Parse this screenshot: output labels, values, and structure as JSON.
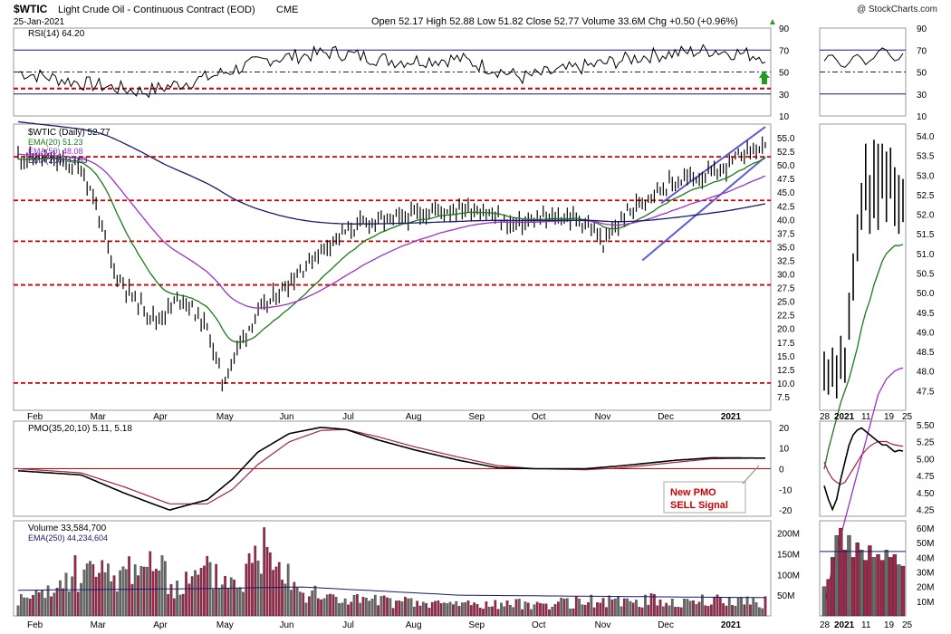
{
  "header": {
    "symbol": "$WTIC",
    "name": "Light Crude Oil - Continuous Contract (EOD)",
    "exchange": "CME",
    "date": "25-Jan-2021",
    "copyright": "@ StockCharts.com",
    "quote": "Open 52.17  High 52.88  Low 51.82  Close 52.77  Volume 33.6M  Chg +0.50 (+0.96%)"
  },
  "annotation": {
    "line1": "New PMO",
    "line2": "SELL Signal",
    "color": "#cc0000"
  },
  "colors": {
    "price": "#000000",
    "ema20": "#1a7a1a",
    "ema50": "#9932cc",
    "ema200": "#191970",
    "support_lines": "#cc0000",
    "channel": "#5b5bd6",
    "volume_up": "#6a6a6a",
    "volume_down": "#a0254a",
    "signal_arrow": "#1f9d1f"
  },
  "chart_data": [
    {
      "id": "rsi",
      "type": "line",
      "label": "RSI(14) 64.20",
      "series": [
        {
          "name": "RSI(14)",
          "last": 64.2
        }
      ],
      "y_ticks": [
        "90",
        "70",
        "50",
        "30",
        "10"
      ],
      "ylim": [
        10,
        90
      ],
      "reference_lines": [
        70,
        50,
        35,
        30
      ]
    },
    {
      "id": "price",
      "type": "line",
      "label": "$WTIC (Daily) 52.77",
      "legend": [
        "EMA(20) 51.23",
        "EMA(50) 48.08",
        "EMA(200) 43.53"
      ],
      "x_labels": [
        "Feb",
        "Mar",
        "Apr",
        "May",
        "Jun",
        "Jul",
        "Aug",
        "Sep",
        "Oct",
        "Nov",
        "Dec",
        "2021"
      ],
      "y_ticks": [
        "55.0",
        "52.5",
        "50.0",
        "47.5",
        "45.0",
        "42.5",
        "40.0",
        "37.5",
        "35.0",
        "32.5",
        "30.0",
        "27.5",
        "25.0",
        "22.5",
        "20.0",
        "17.5",
        "15.0",
        "12.5",
        "10.0",
        "7.5"
      ],
      "ylim": [
        5,
        57.5
      ],
      "support_levels": [
        51.5,
        43.5,
        36.0,
        28.0,
        10.0
      ],
      "months": [
        0,
        1,
        2,
        3,
        4,
        5,
        6,
        7,
        8,
        9,
        10,
        11,
        11.85
      ],
      "close": [
        51.5,
        49.8,
        45.0,
        30.5,
        23.5,
        20.0,
        19.0,
        16.0,
        25.0,
        31.0,
        36.5,
        40.0,
        40.5,
        41.5,
        42.0,
        42.5,
        40.5,
        39.5,
        40.5,
        39.0,
        35.5,
        40.5,
        45.5,
        47.5,
        48.5,
        50.5,
        52.77
      ],
      "ema20_last": 51.23,
      "ema50_last": 48.08,
      "ema200_last": 43.53,
      "series": [
        {
          "name": "$WTIC",
          "points_month": [
            0,
            0.5,
            1,
            1.4,
            1.8,
            2.2,
            2.6,
            3.0,
            3.35,
            3.7,
            4.1,
            4.5,
            5.0,
            5.5,
            6.0,
            6.5,
            7.0,
            7.3,
            7.8,
            8.3,
            8.7,
            9.1,
            9.6,
            10.1,
            10.6,
            11.1,
            11.85
          ]
        },
        {
          "name": "EMA(20)",
          "last": 51.23
        },
        {
          "name": "EMA(50)",
          "last": 48.08
        },
        {
          "name": "EMA(200)",
          "last": 43.53
        }
      ]
    },
    {
      "id": "pmo",
      "type": "line",
      "label": "PMO(35,20,10) 5.11, 5.18",
      "y_ticks": [
        "20",
        "10",
        "0",
        "-10",
        "-20"
      ],
      "ylim": [
        -23,
        23
      ],
      "months": [
        0,
        1,
        1.7,
        2.4,
        3.0,
        3.4,
        3.8,
        4.3,
        4.8,
        5.2,
        5.7,
        6.3,
        7.0,
        7.6,
        8.2,
        9.0,
        9.6,
        10.4,
        11.0,
        11.85
      ],
      "pmo": [
        -1,
        -3,
        -12,
        -20,
        -15,
        -5,
        8,
        17,
        20,
        19,
        14,
        9,
        4,
        0.5,
        0,
        0,
        1.5,
        4,
        5.3,
        5.11
      ],
      "signal": [
        0,
        -2,
        -9,
        -17,
        -17,
        -10,
        2,
        13,
        18.5,
        19,
        15.5,
        10.5,
        5.5,
        1.5,
        0,
        -0.5,
        0.5,
        3,
        4.8,
        5.18
      ]
    },
    {
      "id": "volume",
      "type": "bar",
      "label": "Volume 33,584,700",
      "legend": "EMA(250) 44,234,604",
      "y_ticks": [
        "200M",
        "150M",
        "100M",
        "50M"
      ],
      "ylim": [
        0,
        230
      ],
      "months": [
        0,
        0.5,
        1,
        1.5,
        2,
        2.5,
        3,
        3.5,
        4,
        4.5,
        5,
        5.5,
        6,
        6.5,
        7,
        7.5,
        8,
        8.5,
        9,
        9.5,
        10,
        10.5,
        11,
        11.5,
        11.85
      ],
      "values": [
        40,
        55,
        120,
        95,
        150,
        70,
        110,
        85,
        210,
        60,
        45,
        40,
        35,
        30,
        32,
        28,
        30,
        30,
        38,
        35,
        40,
        35,
        38,
        40,
        34
      ]
    }
  ],
  "zoom": {
    "x_labels": [
      "28",
      "2021",
      "11",
      "19",
      "25"
    ],
    "price_ticks": [
      "54.0",
      "53.5",
      "53.0",
      "52.5",
      "52.0",
      "51.5",
      "51.0",
      "50.5",
      "50.0",
      "49.5",
      "49.0",
      "48.5",
      "48.0",
      "47.5"
    ],
    "price_ylim": [
      47.0,
      54.3
    ],
    "rsi_ticks": [
      "90",
      "70",
      "50",
      "30",
      "10"
    ],
    "pmo_ticks": [
      "5.50",
      "5.25",
      "5.00",
      "4.75",
      "4.50",
      "4.25"
    ],
    "pmo_ylim": [
      4.15,
      5.55
    ],
    "volume_ticks": [
      "60M",
      "50M",
      "40M",
      "30M",
      "20M",
      "10M"
    ],
    "volume_ylim": [
      0,
      65
    ],
    "days": [
      0,
      1,
      2,
      3,
      4,
      5,
      6,
      7,
      8,
      9,
      10,
      11,
      12,
      13,
      14,
      15,
      16,
      17,
      18,
      19
    ],
    "close": [
      48.0,
      47.6,
      48.2,
      47.6,
      48.5,
      48.0,
      49.5,
      50.5,
      51.5,
      52.2,
      52.6,
      52.0,
      53.3,
      52.5,
      53.5,
      52.8,
      53.3,
      52.6,
      52.3,
      52.77
    ],
    "high": [
      48.5,
      48.3,
      48.6,
      48.4,
      48.9,
      48.6,
      50.0,
      51.0,
      52.0,
      52.8,
      53.8,
      53.0,
      53.9,
      53.8,
      53.8,
      53.6,
      53.7,
      53.2,
      53.0,
      52.9
    ],
    "low": [
      47.5,
      47.4,
      47.6,
      47.3,
      47.8,
      47.7,
      48.8,
      49.8,
      50.8,
      51.6,
      52.1,
      51.5,
      51.9,
      51.6,
      52.4,
      51.8,
      52.4,
      51.7,
      51.5,
      51.8
    ],
    "ema20": [
      45.5,
      46.0,
      46.4,
      46.8,
      47.2,
      47.5,
      47.8,
      48.2,
      48.6,
      49.1,
      49.5,
      49.8,
      50.2,
      50.5,
      50.8,
      51.0,
      51.1,
      51.2,
      51.2,
      51.23
    ],
    "ema50": [
      42.0,
      42.5,
      43.0,
      43.4,
      43.8,
      44.2,
      44.6,
      45.0,
      45.4,
      45.8,
      46.2,
      46.6,
      47.0,
      47.4,
      47.6,
      47.8,
      47.9,
      48.0,
      48.05,
      48.08
    ],
    "pmo": [
      4.6,
      4.4,
      4.25,
      4.4,
      4.7,
      4.95,
      5.2,
      5.35,
      5.42,
      5.45,
      5.4,
      5.35,
      5.3,
      5.25,
      5.2,
      5.2,
      5.15,
      5.1,
      5.12,
      5.11
    ],
    "signal": [
      4.95,
      4.8,
      4.7,
      4.65,
      4.62,
      4.65,
      4.75,
      4.85,
      4.95,
      5.05,
      5.12,
      5.18,
      5.22,
      5.25,
      5.25,
      5.25,
      5.22,
      5.2,
      5.19,
      5.18
    ],
    "volume": [
      20,
      25,
      40,
      55,
      60,
      45,
      55,
      40,
      50,
      45,
      38,
      48,
      40,
      42,
      38,
      45,
      40,
      42,
      35,
      34
    ]
  }
}
